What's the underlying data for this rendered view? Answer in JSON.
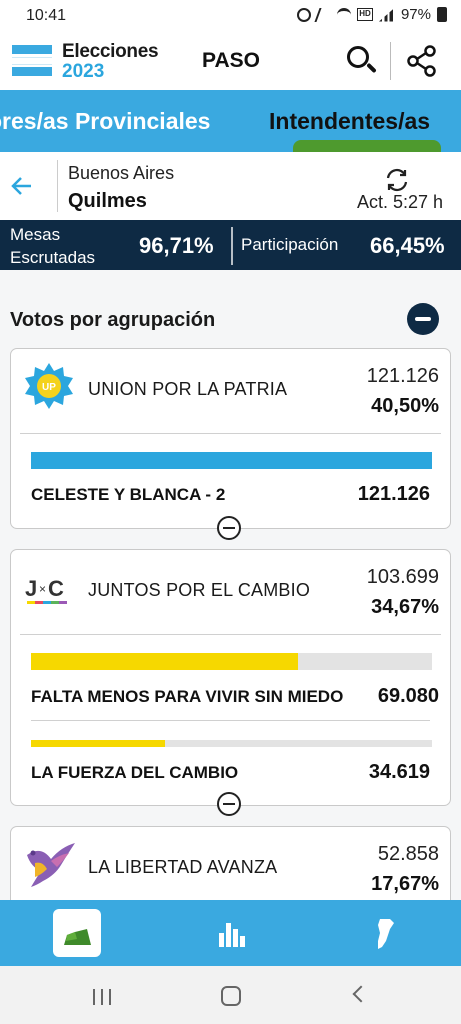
{
  "status_bar": {
    "time": "10:41",
    "battery": "97%"
  },
  "app_bar": {
    "logo_line1": "Elecciones",
    "logo_line2": "2023",
    "title": "PASO"
  },
  "tabs": [
    {
      "label": "ores/as Provinciales",
      "active": false
    },
    {
      "label": "Intendentes/as",
      "active": true
    }
  ],
  "location": {
    "province": "Buenos Aires",
    "municipality": "Quilmes",
    "updated": "Act. 5:27 h"
  },
  "stats": {
    "mesas_label_1": "Mesas",
    "mesas_label_2": "Escrutadas",
    "mesas_value": "96,71%",
    "participacion_label": "Participación",
    "participacion_value": "66,45%"
  },
  "section_title": "Votos por agrupación",
  "colors": {
    "primary": "#3aa9e0",
    "dark": "#0e2a44",
    "accent_green": "#4e9a2e",
    "yellow": "#f6d800"
  },
  "parties": [
    {
      "name": "UNION POR LA PATRIA",
      "logo": "union-por-la-patria-logo",
      "votes": "121.126",
      "percent": "40,50%",
      "lists": [
        {
          "name": "CELESTE Y BLANCA - 2",
          "votes": "121.126",
          "share": 1.0,
          "color": "#2ba6de"
        }
      ]
    },
    {
      "name": "JUNTOS POR EL CAMBIO",
      "logo": "juntos-por-el-cambio-logo",
      "logo_text": "J×C",
      "votes": "103.699",
      "percent": "34,67%",
      "lists": [
        {
          "name": "FALTA MENOS PARA VIVIR SIN MIEDO",
          "votes": "69.080",
          "share": 0.666,
          "color": "#f6d800"
        },
        {
          "name": "LA FUERZA DEL CAMBIO",
          "votes": "34.619",
          "share": 0.334,
          "color": "#f6d800"
        }
      ]
    },
    {
      "name": "LA LIBERTAD AVANZA",
      "logo": "la-libertad-avanza-logo",
      "votes": "52.858",
      "percent": "17,67%",
      "lists": []
    }
  ],
  "bottom_nav": [
    {
      "icon": "ballot-box-icon",
      "active": true
    },
    {
      "icon": "bar-chart-icon",
      "active": false
    },
    {
      "icon": "argentina-map-icon",
      "active": false
    }
  ]
}
